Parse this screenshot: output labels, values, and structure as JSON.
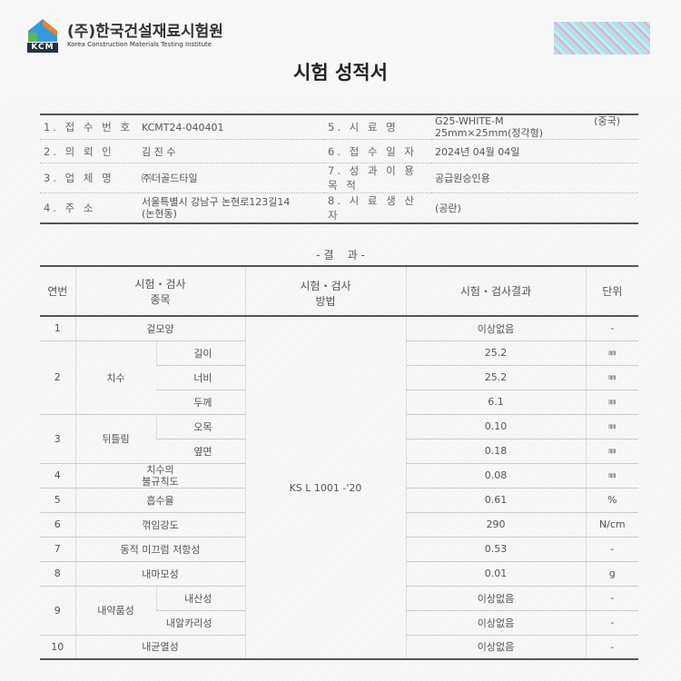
{
  "header": {
    "org_ko": "(주)한국건설재료시험원",
    "org_en": "Korea Construction Materials Testing Institute",
    "logo_text": "KCM",
    "watermark": "(주)한국건설재료시험원",
    "watermark2": "KCM"
  },
  "title": "시험 성적서",
  "info": [
    {
      "l1": "1. 접 수 번 호",
      "v1": "KCMT24-040401",
      "l2": "5. 시 료 명",
      "v2": "G25-WHITE-M",
      "v2b": "25mm×25mm(정각형)",
      "v2c": "(중국)"
    },
    {
      "l1": "2. 의 뢰 인",
      "v1": "김 진 수",
      "l2": "6. 접 수 일 자",
      "v2": "2024년 04월 04일"
    },
    {
      "l1": "3. 업 체 명",
      "v1": "㈜더골드타일",
      "l2": "7. 성 과 이 용 목 적",
      "v2": "공급원승인용"
    },
    {
      "l1": "4. 주 소",
      "v1": "서울특별시 강남구 논현로123길14",
      "v1b": "(논현동)",
      "l2": "8. 시 료 생 산 자",
      "v2": "(공란)"
    }
  ],
  "results_heading": "- 결    과 -",
  "results": {
    "headers": {
      "no": "연번",
      "item1": "시험・검사",
      "item2": "종목",
      "method1": "시험・검사",
      "method2": "방법",
      "result": "시험・검사결과",
      "unit": "단위"
    },
    "method": "KS L 1001 -'20",
    "rows": [
      {
        "no": "1",
        "item": "겉모양",
        "result": "이상없음",
        "unit": "-"
      },
      {
        "no": "2",
        "item": "치수",
        "sub": "길이",
        "result": "25.2",
        "unit": "㎜"
      },
      {
        "sub": "너비",
        "result": "25.2",
        "unit": "㎜"
      },
      {
        "sub": "두께",
        "result": "6.1",
        "unit": "㎜"
      },
      {
        "no": "3",
        "item": "뒤틀림",
        "sub": "오목",
        "result": "0.10",
        "unit": "㎜"
      },
      {
        "sub": "옆면",
        "result": "0.18",
        "unit": "㎜"
      },
      {
        "no": "4",
        "item": "치수의",
        "item_b": "불규칙도",
        "result": "0.08",
        "unit": "㎜"
      },
      {
        "no": "5",
        "item": "흡수율",
        "result": "0.61",
        "unit": "%"
      },
      {
        "no": "6",
        "item": "꺾임강도",
        "result": "290",
        "unit": "N/cm"
      },
      {
        "no": "7",
        "item": "동적 미끄럼 저항성",
        "result": "0.53",
        "unit": "-"
      },
      {
        "no": "8",
        "item": "내마모성",
        "result": "0.01",
        "unit": "g"
      },
      {
        "no": "9",
        "item": "내약품성",
        "sub": "내산성",
        "result": "이상없음",
        "unit": "-"
      },
      {
        "sub": "내알카리성",
        "result": "이상없음",
        "unit": "-"
      },
      {
        "no": "10",
        "item": "내균열성",
        "result": "이상없음",
        "unit": "-"
      }
    ]
  }
}
